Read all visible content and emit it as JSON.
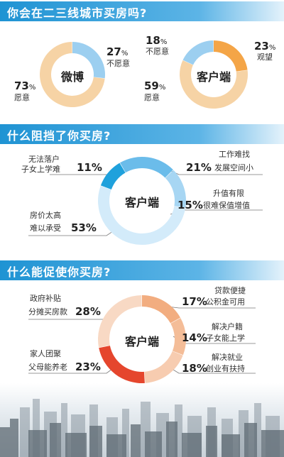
{
  "sections": {
    "s1_title": "你会在二三线城市买房吗?",
    "s2_title": "什么阻挡了你买房?",
    "s3_title": "什么能促使你买房?"
  },
  "chart_data": [
    {
      "type": "pie",
      "center_label": "微博",
      "slices": [
        {
          "label": "不愿意",
          "value": 27,
          "color": "#9ccff0"
        },
        {
          "label": "愿意",
          "value": 73,
          "color": "#f6d3a5"
        }
      ]
    },
    {
      "type": "pie",
      "center_label": "客户端",
      "slices": [
        {
          "label": "观望",
          "value": 23,
          "color": "#f4a547"
        },
        {
          "label": "愿意",
          "value": 59,
          "color": "#f6d3a5"
        },
        {
          "label": "不愿意",
          "value": 18,
          "color": "#9ccff0"
        }
      ]
    },
    {
      "type": "pie",
      "center_label": "客户端",
      "slices": [
        {
          "label_lines": [
            "工作难找",
            "发展空间小"
          ],
          "value": 21,
          "color": "#6bbcea"
        },
        {
          "label_lines": [
            "升值有限",
            "很难保值增值"
          ],
          "value": 15,
          "color": "#a7d6f3"
        },
        {
          "label_lines": [
            "房价太高",
            "难以承受"
          ],
          "value": 53,
          "color": "#d3ebfa"
        },
        {
          "label_lines": [
            "无法落户",
            "子女上学难"
          ],
          "value": 11,
          "color": "#1fa1dc"
        }
      ]
    },
    {
      "type": "pie",
      "center_label": "客户端",
      "slices": [
        {
          "label_lines": [
            "贷款便捷",
            "公积金可用"
          ],
          "value": 17,
          "color": "#f2ad80"
        },
        {
          "label_lines": [
            "解决户籍",
            "子女能上学"
          ],
          "value": 14,
          "color": "#f4bd98"
        },
        {
          "label_lines": [
            "解决就业",
            "创业有扶持"
          ],
          "value": 18,
          "color": "#f7ccb0"
        },
        {
          "label_lines": [
            "家人团聚",
            "父母能养老"
          ],
          "value": 23,
          "color": "#e5462d"
        },
        {
          "label_lines": [
            "政府补贴",
            "分摊买房款"
          ],
          "value": 28,
          "color": "#f8d9c4"
        }
      ]
    }
  ],
  "labels": {
    "c1": {
      "p27": "27",
      "p27_label": "不愿意",
      "p73": "73",
      "p73_label": "愿意",
      "pct_sign": "%"
    },
    "c2": {
      "p18": "18",
      "p18_label": "不愿意",
      "p23": "23",
      "p23_label": "观望",
      "p59": "59",
      "p59_label": "愿意",
      "pct_sign": "%"
    },
    "c3": {
      "l1a": "无法落户",
      "l1b": "子女上学难",
      "v1": "11%",
      "l2a": "工作难找",
      "l2b": "发展空间小",
      "v2": "21%",
      "l3a": "升值有限",
      "l3b": "很难保值增值",
      "v3": "15%",
      "l4a": "房价太高",
      "l4b": "难以承受",
      "v4": "53%"
    },
    "c4": {
      "l1a": "政府补贴",
      "l1b": "分摊买房款",
      "v1": "28%",
      "l2a": "贷款便捷",
      "l2b": "公积金可用",
      "v2": "17%",
      "l3a": "解决户籍",
      "l3b": "子女能上学",
      "v3": "14%",
      "l4a": "家人团聚",
      "l4b": "父母能养老",
      "v4": "23%",
      "l5a": "解决就业",
      "l5b": "创业有扶持",
      "v5": "18%"
    }
  }
}
